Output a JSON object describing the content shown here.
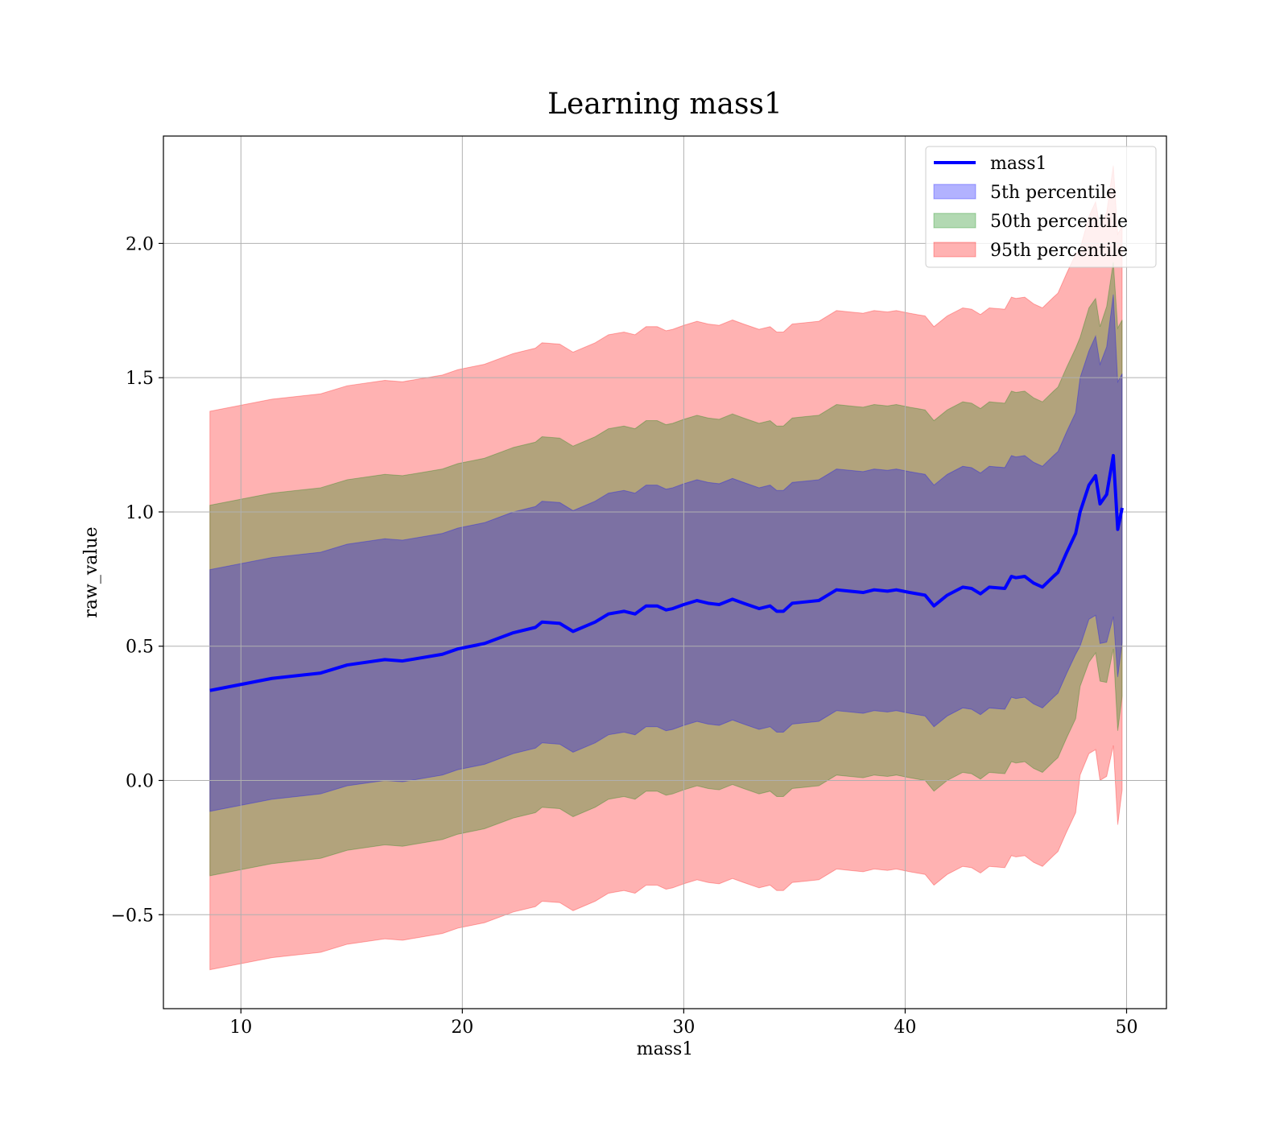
{
  "chart_data": {
    "type": "area",
    "title": "Learning mass1",
    "xlabel": "mass1",
    "ylabel": "raw_value",
    "xlim": [
      6.5,
      51.8
    ],
    "ylim": [
      -0.85,
      2.4
    ],
    "xticks": [
      10,
      20,
      30,
      40,
      50
    ],
    "xtick_labels": [
      "10",
      "20",
      "30",
      "40",
      "50"
    ],
    "yticks": [
      -0.5,
      0.0,
      0.5,
      1.0,
      1.5,
      2.0
    ],
    "ytick_labels": [
      "−0.5",
      "0.0",
      "0.5",
      "1.0",
      "1.5",
      "2.0"
    ],
    "grid": true,
    "legend_position": "top-right",
    "colors": {
      "line": "#0000ff",
      "p5": "#0000ff",
      "p50": "#008000",
      "p95": "#ff0000"
    },
    "x": [
      8.6,
      11.4,
      13.6,
      14.8,
      16.5,
      17.3,
      19.1,
      19.8,
      21.0,
      22.3,
      23.3,
      23.6,
      24.4,
      25.0,
      26.0,
      26.6,
      27.3,
      27.8,
      28.3,
      28.8,
      29.2,
      29.5,
      30.0,
      30.6,
      31.1,
      31.6,
      32.2,
      32.7,
      33.4,
      33.9,
      34.2,
      34.5,
      34.9,
      35.5,
      36.1,
      36.5,
      36.9,
      37.5,
      38.1,
      38.6,
      39.2,
      39.6,
      40.2,
      40.9,
      41.3,
      41.9,
      42.6,
      43.0,
      43.4,
      43.8,
      44.5,
      44.8,
      45.0,
      45.4,
      45.8,
      46.2,
      46.7,
      46.9,
      47.3,
      47.7,
      47.9,
      48.3,
      48.6,
      48.8,
      49.1,
      49.4,
      49.6,
      49.8
    ],
    "series": [
      {
        "name": "mass1",
        "values": [
          0.335,
          0.38,
          0.4,
          0.43,
          0.45,
          0.445,
          0.47,
          0.49,
          0.51,
          0.55,
          0.57,
          0.59,
          0.585,
          0.555,
          0.59,
          0.62,
          0.63,
          0.62,
          0.65,
          0.65,
          0.635,
          0.64,
          0.655,
          0.67,
          0.66,
          0.655,
          0.675,
          0.66,
          0.64,
          0.65,
          0.63,
          0.63,
          0.66,
          0.665,
          0.67,
          0.69,
          0.71,
          0.705,
          0.7,
          0.71,
          0.705,
          0.71,
          0.7,
          0.69,
          0.65,
          0.69,
          0.72,
          0.715,
          0.695,
          0.72,
          0.715,
          0.76,
          0.755,
          0.76,
          0.735,
          0.72,
          0.76,
          0.775,
          0.85,
          0.92,
          1.0,
          1.1,
          1.135,
          1.03,
          1.065,
          1.21,
          0.935,
          1.015
        ]
      }
    ],
    "bands": [
      {
        "name": "5th percentile",
        "color": "#0000ff",
        "offset": 0.45,
        "tail": [
          0.5,
          0.5,
          0.52,
          0.52,
          0.55,
          0.6,
          0.55,
          0.5
        ]
      },
      {
        "name": "50th percentile",
        "color": "#008000",
        "offset": 0.69,
        "tail": [
          0.65,
          0.66,
          0.66,
          0.66,
          0.7,
          0.72,
          0.75,
          0.7
        ]
      },
      {
        "name": "95th percentile",
        "color": "#ff0000",
        "offset": 1.04,
        "tail": [
          0.98,
          1.0,
          1.02,
          1.03,
          1.05,
          1.08,
          1.1,
          1.05
        ]
      }
    ]
  }
}
